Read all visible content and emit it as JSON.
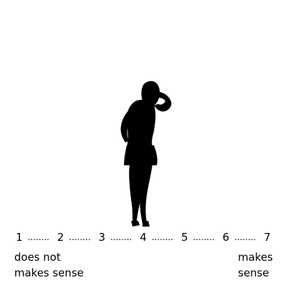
{
  "stimulus": {
    "icon": "female-silhouette-icon",
    "color": "#000000"
  },
  "scale": {
    "points": [
      "1",
      "2",
      "3",
      "4",
      "5",
      "6",
      "7"
    ],
    "separator": "........"
  },
  "anchors": {
    "low": {
      "line1": "does not",
      "line2": "makes sense"
    },
    "high": {
      "line1": "makes",
      "line2": "sense"
    }
  }
}
